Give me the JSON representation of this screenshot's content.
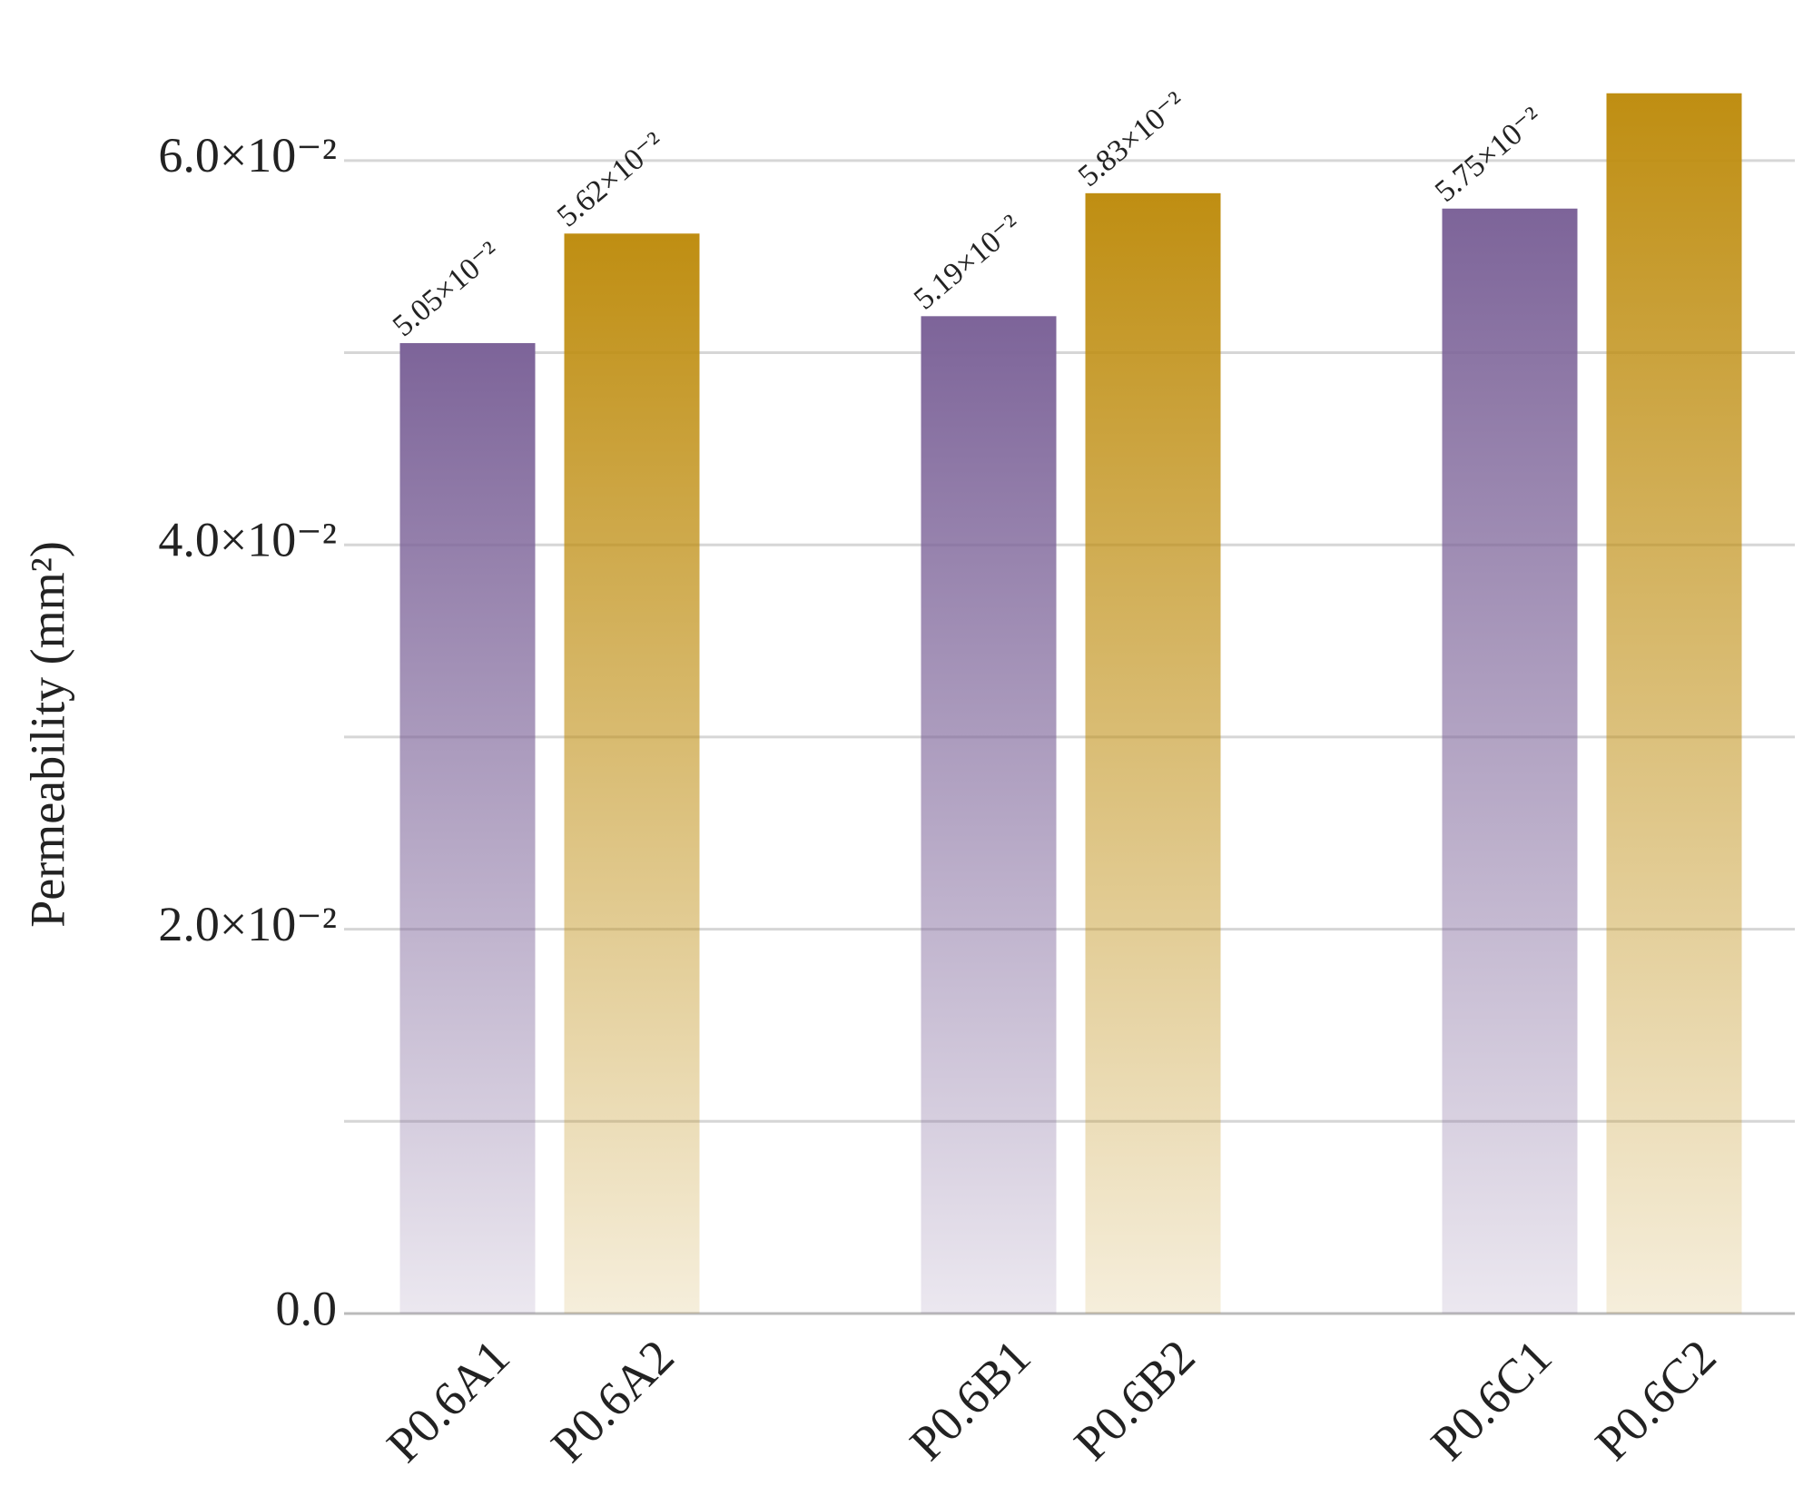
{
  "chart_data": {
    "type": "bar",
    "y_axis_label": "Permeability (mm²)",
    "categories": [
      "P0.6A1",
      "P0.6A2",
      "P0.6B1",
      "P0.6B2",
      "P0.6C1",
      "P0.6C2"
    ],
    "values": [
      0.0505,
      0.0562,
      0.0519,
      0.0583,
      0.0575,
      0.0635
    ],
    "value_labels": [
      "5.05×10⁻²",
      "5.62×10⁻²",
      "5.19×10⁻²",
      "5.83×10⁻²",
      "5.75×10⁻²",
      null
    ],
    "colors": [
      "#7d6499",
      "#bf8e12",
      "#7d6499",
      "#bf8e12",
      "#7d6499",
      "#bf8e12"
    ],
    "ylim": [
      0,
      0.065
    ],
    "yticks": [
      {
        "value": 0,
        "label": "0.0"
      },
      {
        "value": 0.01,
        "label": null
      },
      {
        "value": 0.02,
        "label": "2.0×10⁻²"
      },
      {
        "value": 0.03,
        "label": null
      },
      {
        "value": 0.04,
        "label": "4.0×10⁻²"
      },
      {
        "value": 0.05,
        "label": null
      },
      {
        "value": 0.06,
        "label": "6.0×10⁻²"
      }
    ],
    "grid": true
  }
}
